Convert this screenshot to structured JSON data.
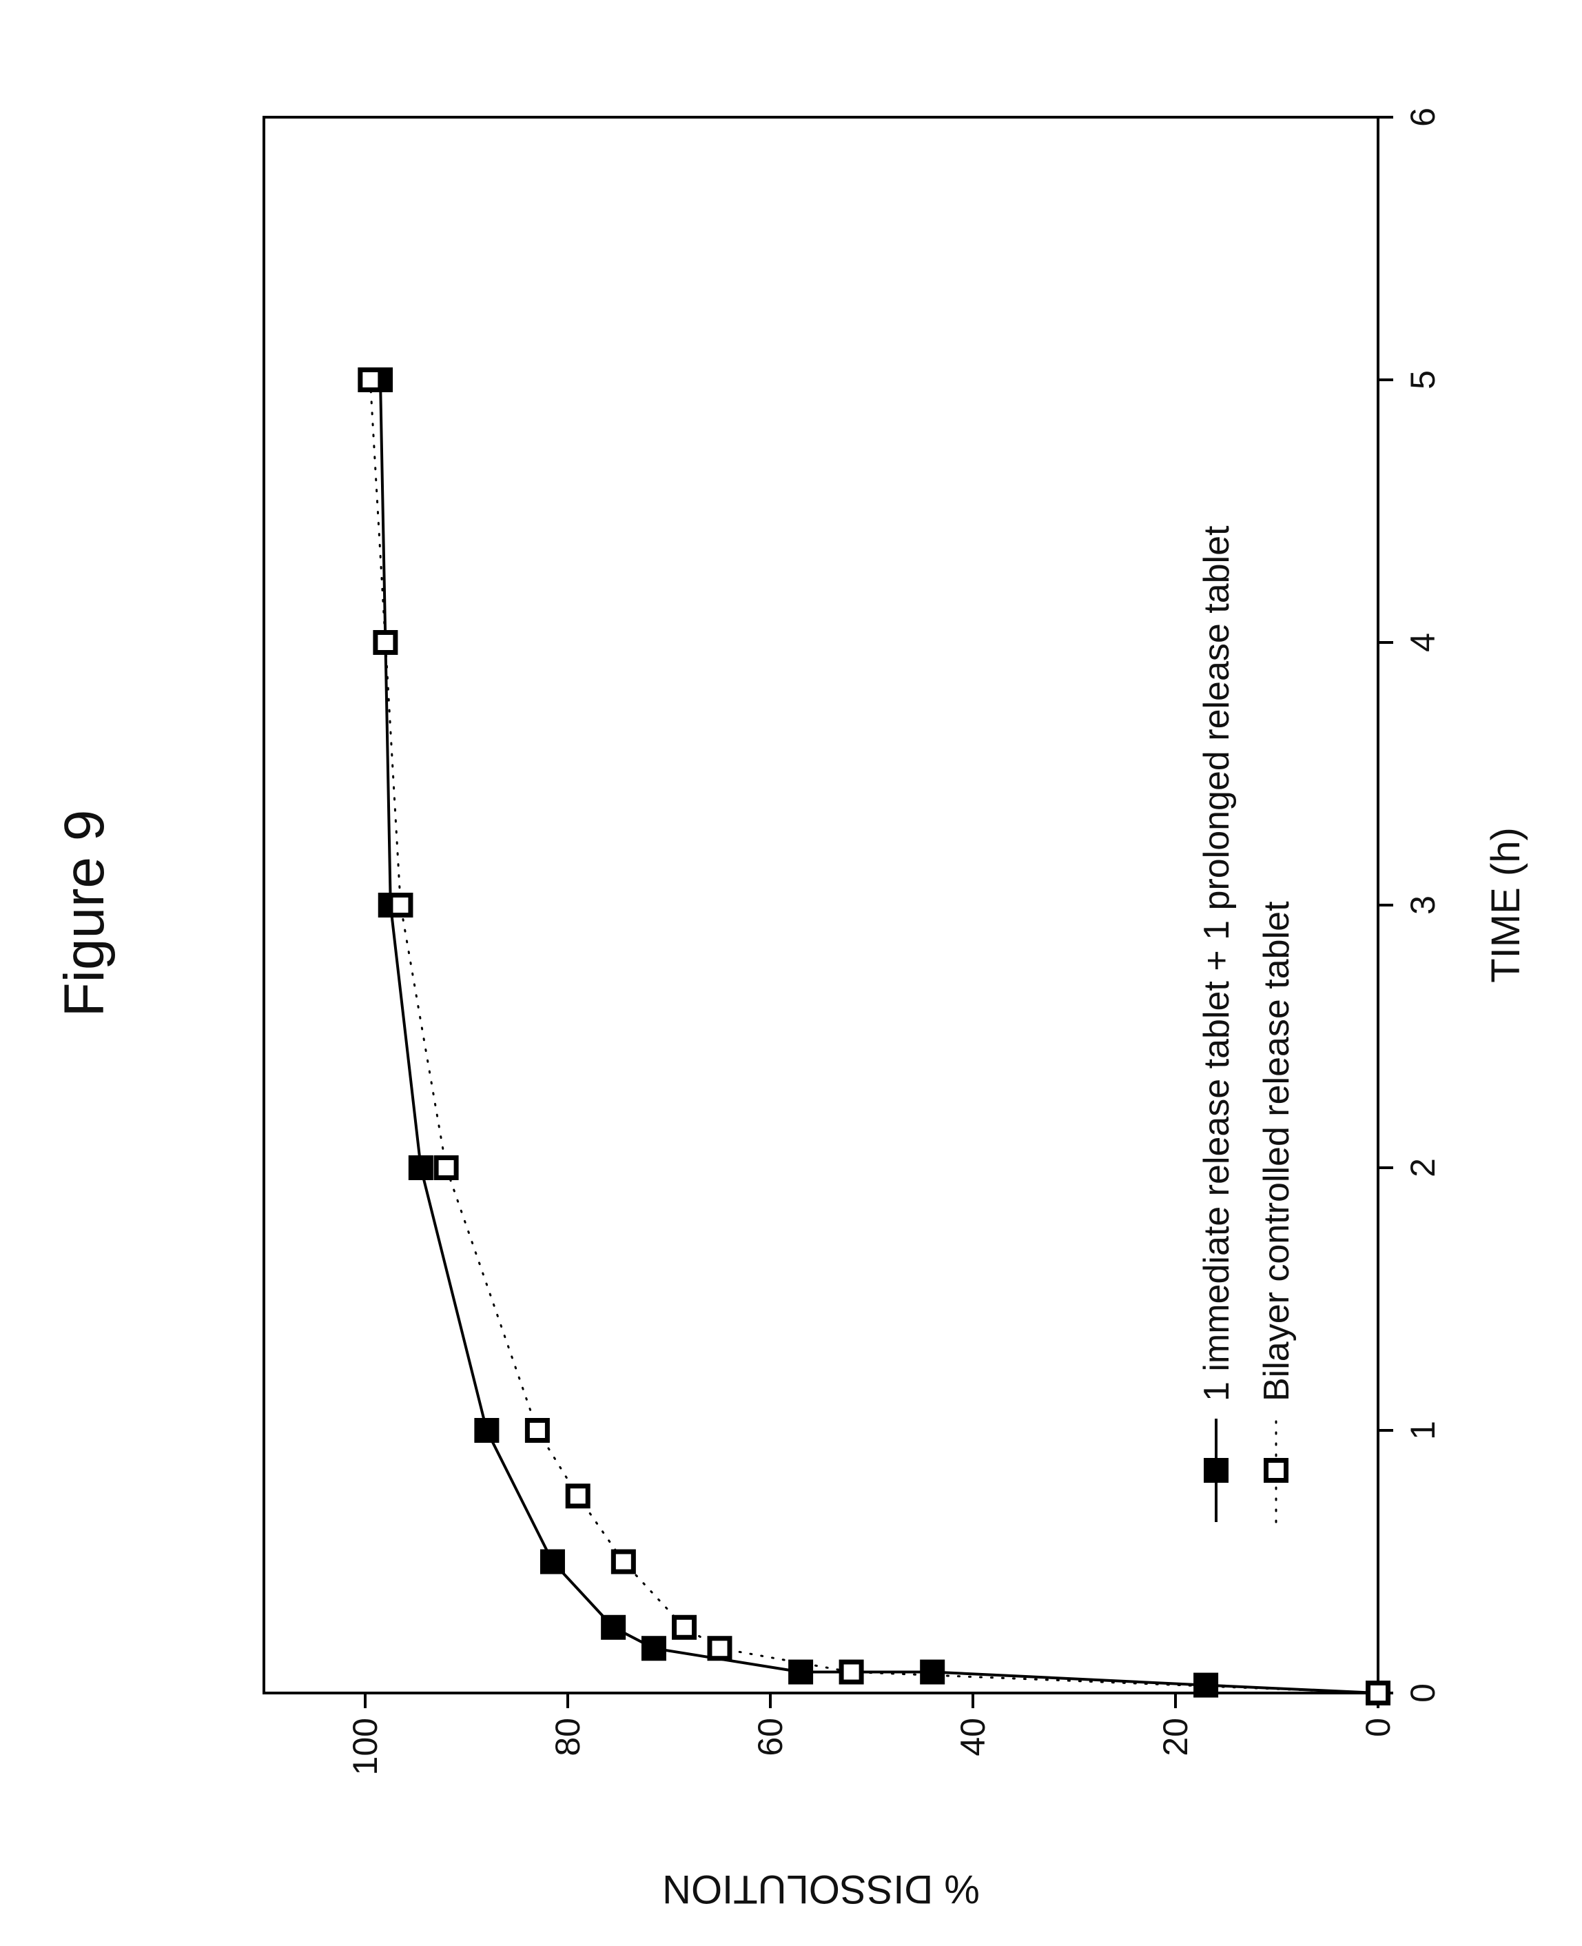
{
  "figure_title": "Figure 9",
  "chart_data": {
    "type": "scatter",
    "title": "",
    "xlabel": "TIME (h)",
    "ylabel": "% DISSOLUTION",
    "xlim": [
      0,
      6
    ],
    "ylim": [
      0,
      110
    ],
    "x_ticks": [
      "0",
      "1",
      "2",
      "3",
      "4",
      "5",
      "6"
    ],
    "y_ticks": [
      "0",
      "20",
      "40",
      "60",
      "80",
      "100"
    ],
    "legend_position": "bottom-right",
    "grid": false,
    "series": [
      {
        "name": "1 immediate release tablet + 1 prolonged release tablet",
        "marker": "filled-square",
        "line": "solid",
        "color": "#000000",
        "x": [
          0,
          0.03,
          0.08,
          0.08,
          0.17,
          0.25,
          0.5,
          1,
          2,
          3,
          5
        ],
        "y": [
          0,
          17,
          44,
          57,
          71.5,
          75.5,
          81.5,
          88,
          94.5,
          97.5,
          98.5
        ]
      },
      {
        "name": "Bilayer controlled release tablet",
        "marker": "open-square",
        "line": "dotted",
        "color": "#000000",
        "x": [
          0,
          0.08,
          0.17,
          0.25,
          0.5,
          0.75,
          1,
          2,
          3,
          4,
          5
        ],
        "y": [
          0,
          52,
          65,
          68.5,
          74.5,
          79,
          83,
          92,
          96.5,
          98,
          99.5
        ]
      }
    ]
  }
}
